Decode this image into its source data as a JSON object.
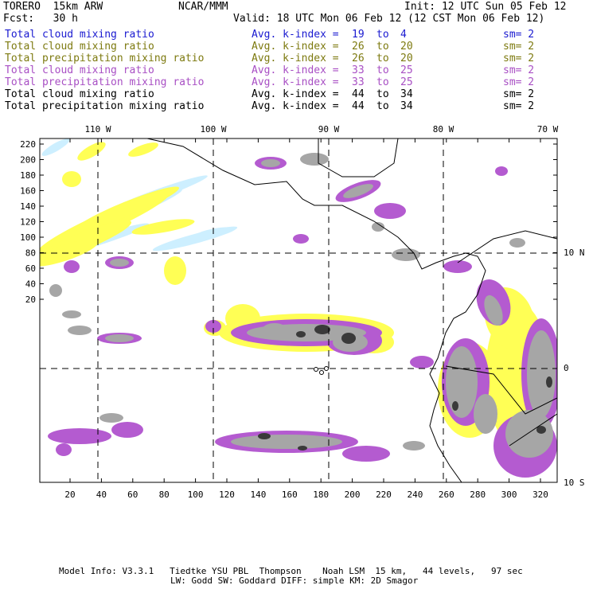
{
  "header": {
    "model": "TORERO  15km ARW",
    "org": "NCAR/MMM",
    "init": "Init: 12 UTC Sun 05 Feb 12",
    "fcst": "Fcst:   30 h",
    "valid": "Valid: 18 UTC Mon 06 Feb 12 (12 CST Mon 06 Feb 12)"
  },
  "legend": [
    {
      "field": "Total cloud mixing ratio",
      "stat": "Avg. k-index =",
      "k_from": "19",
      "to": "to",
      "k_to": "4",
      "sm": "sm= 2",
      "color": "#1a1ad0"
    },
    {
      "field": "Total cloud mixing ratio",
      "stat": "Avg. k-index =",
      "k_from": "26",
      "to": "to",
      "k_to": "20",
      "sm": "sm= 2",
      "color": "#7d7a10"
    },
    {
      "field": "Total precipitation mixing ratio",
      "stat": "Avg. k-index =",
      "k_from": "26",
      "to": "to",
      "k_to": "20",
      "sm": "sm= 2",
      "color": "#7d7a10"
    },
    {
      "field": "Total cloud mixing ratio",
      "stat": "Avg. k-index =",
      "k_from": "33",
      "to": "to",
      "k_to": "25",
      "sm": "sm= 2",
      "color": "#a84fc4"
    },
    {
      "field": "Total precipitation mixing ratio",
      "stat": "Avg. k-index =",
      "k_from": "33",
      "to": "to",
      "k_to": "25",
      "sm": "sm= 2",
      "color": "#a84fc4"
    },
    {
      "field": "Total cloud mixing ratio",
      "stat": "Avg. k-index =",
      "k_from": "44",
      "to": "to",
      "k_to": "34",
      "sm": "sm= 2",
      "color": "#000000"
    },
    {
      "field": "Total precipitation mixing ratio",
      "stat": "Avg. k-index =",
      "k_from": "44",
      "to": "to",
      "k_to": "34",
      "sm": "sm= 2",
      "color": "#000000"
    }
  ],
  "map": {
    "lon_labels": [
      "110 W",
      "100 W",
      "90 W",
      "80 W",
      "70 W"
    ],
    "lat_labels": [
      "10 N",
      "0",
      "10 S"
    ],
    "y_ticks": [
      "220",
      "200",
      "180",
      "160",
      "140",
      "120",
      "100",
      "80",
      "60",
      "40",
      "20"
    ],
    "x_ticks": [
      "20",
      "40",
      "60",
      "80",
      "100",
      "120",
      "140",
      "160",
      "180",
      "200",
      "220",
      "240",
      "260",
      "280",
      "300",
      "320"
    ],
    "colors": {
      "light_blue": "#cdefff",
      "yellow": "#ffff55",
      "purple": "#b45bd0",
      "gray": "#a6a6a6",
      "dark": "#3a3a3a"
    }
  },
  "footer": {
    "line1": "Model Info: V3.3.1   Tiedtke YSU PBL  Thompson    Noah LSM  15 km,   44 levels,   97 sec",
    "line2": "LW: Godd SW: Goddard DIFF: simple KM: 2D Smagor"
  }
}
